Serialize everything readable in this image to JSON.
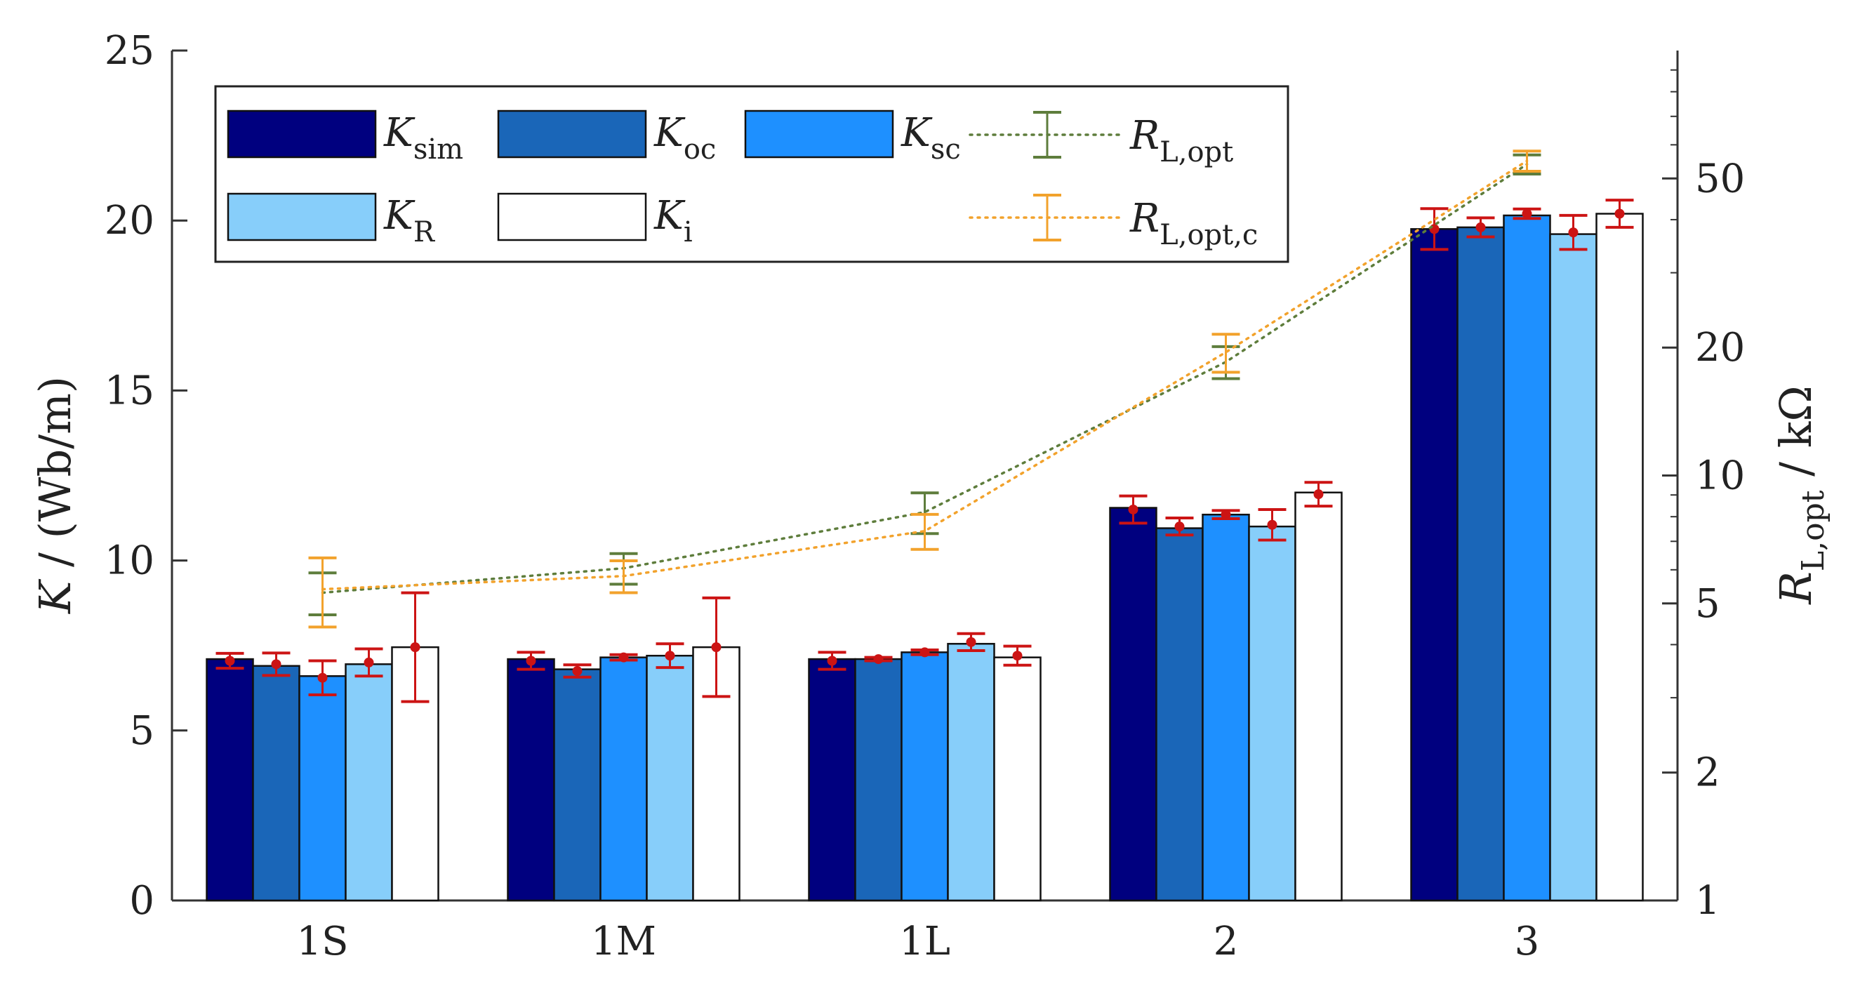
{
  "chart_data": {
    "type": "bar",
    "categories": [
      "1S",
      "1M",
      "1L",
      "2",
      "3"
    ],
    "ylabel_left": {
      "main": "K",
      "rest": " / (Wb/m)"
    },
    "ylabel_right": {
      "main": "R",
      "sub": "L,opt",
      "rest": " / kΩ"
    },
    "ylim_left": [
      0,
      25
    ],
    "yticks_left": [
      "0",
      "5",
      "10",
      "15",
      "20",
      "25"
    ],
    "ylim_right": [
      1,
      100
    ],
    "ylim_right_scale": "log",
    "yticks_right": [
      1,
      2,
      5,
      10,
      20,
      50
    ],
    "yticks_right_labels": [
      "1",
      "2",
      "5",
      "10",
      "20",
      "50"
    ],
    "legend_position": "top-left",
    "series": [
      {
        "name": "K_sim",
        "label_main": "K",
        "label_sub": "sim",
        "color": "#00007f",
        "values": [
          7.1,
          7.1,
          7.1,
          11.55,
          19.75
        ]
      },
      {
        "name": "K_oc",
        "label_main": "K",
        "label_sub": "oc",
        "color": "#1a66b8",
        "values": [
          6.9,
          6.8,
          7.1,
          10.95,
          19.8
        ]
      },
      {
        "name": "K_sc",
        "label_main": "K",
        "label_sub": "sc",
        "color": "#1e90ff",
        "values": [
          6.6,
          7.15,
          7.3,
          11.35,
          20.15
        ]
      },
      {
        "name": "K_R",
        "label_main": "K",
        "label_sub": "R",
        "color": "#87cefa",
        "values": [
          6.95,
          7.2,
          7.55,
          11.0,
          19.6
        ]
      },
      {
        "name": "K_i",
        "label_main": "K",
        "label_sub": "i",
        "color": "#ffffff",
        "values": [
          7.45,
          7.45,
          7.15,
          12.0,
          20.2
        ]
      }
    ],
    "error_bars": {
      "color": "#cc1414",
      "points": [
        [
          [
            7.05,
            0.22
          ],
          [
            6.95,
            0.33
          ],
          [
            6.55,
            0.5
          ],
          [
            7.0,
            0.4
          ],
          [
            7.45,
            1.6
          ]
        ],
        [
          [
            7.05,
            0.25
          ],
          [
            6.75,
            0.18
          ],
          [
            7.15,
            0.08
          ],
          [
            7.2,
            0.35
          ],
          [
            7.45,
            1.45
          ]
        ],
        [
          [
            7.05,
            0.25
          ],
          [
            7.1,
            0.05
          ],
          [
            7.3,
            0.07
          ],
          [
            7.6,
            0.25
          ],
          [
            7.2,
            0.28
          ]
        ],
        [
          [
            11.5,
            0.4
          ],
          [
            11.0,
            0.25
          ],
          [
            11.35,
            0.12
          ],
          [
            11.05,
            0.45
          ],
          [
            11.95,
            0.35
          ]
        ],
        [
          [
            19.75,
            0.6
          ],
          [
            19.8,
            0.28
          ],
          [
            20.2,
            0.14
          ],
          [
            19.65,
            0.5
          ],
          [
            20.2,
            0.4
          ]
        ]
      ]
    },
    "lines": [
      {
        "name": "R_L,opt",
        "label_main": "R",
        "label_sub": "L,opt",
        "color": "#5e7d3c",
        "values": [
          5.3,
          6.05,
          8.2,
          18.5,
          54.0
        ],
        "errors": [
          0.6,
          0.5,
          0.9,
          1.6,
          2.8
        ]
      },
      {
        "name": "R_L,opt,c",
        "label_main": "R",
        "label_sub": "L,opt,c",
        "color": "#f2a22c",
        "values": [
          5.4,
          5.8,
          7.4,
          19.5,
          55.0
        ],
        "errors": [
          1.0,
          0.5,
          0.7,
          2.0,
          3.0
        ]
      }
    ]
  }
}
